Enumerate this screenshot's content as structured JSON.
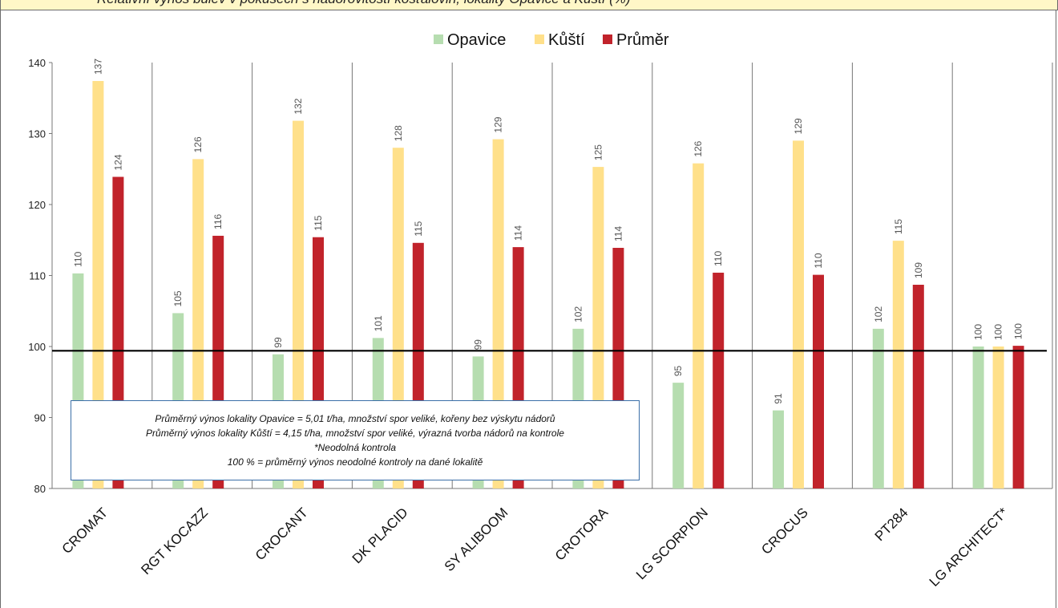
{
  "header": {
    "caption_fragment": "Relativní výnos bulev v pokusech s nádorovitostí košťálovin, lokality Opavice a Kůští (%)"
  },
  "note": {
    "line1": "Průměrný výnos lokality Opavice = 5,01 t/ha, množství spor veliké, kořeny bez výskytu nádorů",
    "line2": "Průměrný výnos lokality Kůští = 4,15 t/ha, množství spor veliké, výrazná tvorba nádorů na kontrole",
    "line3": "*Neodolná kontrola",
    "line4": "100 % = průměrný výnos neodolné kontroly na dané lokalitě"
  },
  "colors": {
    "opavice": "#b6ddb0",
    "kusti": "#ffe08a",
    "prumer": "#c1232b",
    "reference_line": "#000000",
    "grid": "#777777"
  },
  "chart_data": {
    "type": "bar",
    "categories": [
      "CROMAT",
      "RGT KOCAZZ",
      "CROCANT",
      "DK PLACID",
      "SY ALIBOOM",
      "CROTORA",
      "LG SCORPION",
      "CROCUS",
      "PT284",
      "LG ARCHITECT*"
    ],
    "series": [
      {
        "name": "Opavice",
        "values": [
          110.3,
          104.7,
          98.9,
          101.2,
          98.6,
          102.5,
          94.9,
          91.0,
          102.5,
          100.0
        ],
        "labels": [
          "110",
          "105",
          "99",
          "101",
          "99",
          "102",
          "95",
          "91",
          "102",
          "100"
        ]
      },
      {
        "name": "Kůští",
        "values": [
          137.4,
          126.4,
          131.8,
          128.0,
          129.2,
          125.3,
          125.8,
          129.0,
          114.9,
          100.0
        ],
        "labels": [
          "137",
          "126",
          "132",
          "128",
          "129",
          "125",
          "126",
          "129",
          "115",
          "100"
        ]
      },
      {
        "name": "Průměr",
        "values": [
          123.9,
          115.6,
          115.4,
          114.6,
          114.0,
          113.9,
          110.4,
          110.1,
          108.7,
          100.1
        ],
        "labels": [
          "124",
          "116",
          "115",
          "115",
          "114",
          "114",
          "110",
          "110",
          "109",
          "100"
        ]
      }
    ],
    "ylim": [
      80,
      140
    ],
    "yticks": [
      80,
      90,
      100,
      110,
      120,
      130,
      140
    ],
    "reference_line": 99.4,
    "legend_position": "top",
    "xlabel": "",
    "ylabel": "",
    "title": ""
  }
}
